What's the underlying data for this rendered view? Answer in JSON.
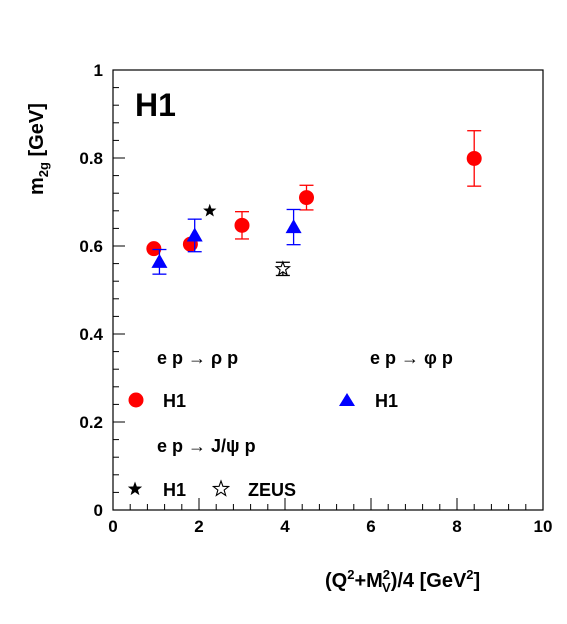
{
  "chart_data": {
    "type": "scatter",
    "panel_label": "H1",
    "xlabel": "(Q²+M_V²)/4 [GeV²]",
    "ylabel": "m_2g [GeV]",
    "xlim": [
      0,
      10
    ],
    "ylim": [
      0,
      1
    ],
    "x_ticks": [
      0,
      2,
      4,
      6,
      8,
      10
    ],
    "y_ticks": [
      0,
      0.2,
      0.4,
      0.6,
      0.8,
      1
    ],
    "y_tick_labels": [
      "0",
      "0.2",
      "0.4",
      "0.6",
      "0.8",
      "1"
    ],
    "grid": false,
    "legend_placement": "inside-bottom",
    "series": [
      {
        "name": "H1",
        "group": "e p → ρ p",
        "marker": "circle",
        "color": "#ff0000",
        "points": [
          {
            "x": 0.95,
            "y": 0.594,
            "err": 0.0
          },
          {
            "x": 1.8,
            "y": 0.604,
            "err": 0.0
          },
          {
            "x": 3.0,
            "y": 0.647,
            "err": 0.031
          },
          {
            "x": 4.5,
            "y": 0.71,
            "err": 0.028
          },
          {
            "x": 8.4,
            "y": 0.799,
            "err": 0.063
          }
        ]
      },
      {
        "name": "H1",
        "group": "e p → φ p",
        "marker": "triangle",
        "color": "#0000ff",
        "points": [
          {
            "x": 1.08,
            "y": 0.564,
            "err": 0.028
          },
          {
            "x": 1.9,
            "y": 0.624,
            "err": 0.037
          },
          {
            "x": 4.2,
            "y": 0.643,
            "err": 0.04
          }
        ]
      },
      {
        "name": "H1",
        "group": "e p → J/ψ p",
        "marker": "star-filled",
        "color": "#000000",
        "points": [
          {
            "x": 2.25,
            "y": 0.68,
            "err": 0.0
          }
        ]
      },
      {
        "name": "ZEUS",
        "group": "e p → J/ψ p",
        "marker": "star-open",
        "color": "#000000",
        "points": [
          {
            "x": 3.95,
            "y": 0.548,
            "err": 0.015
          }
        ]
      }
    ],
    "legend": {
      "rho_header": "e p → ρ p",
      "phi_header": "e p → φ p",
      "jpsi_header": "e p → J/ψ p",
      "rho_entry": "H1",
      "phi_entry": "H1",
      "jpsi_h1_entry": "H1",
      "jpsi_zeus_entry": "ZEUS"
    }
  }
}
